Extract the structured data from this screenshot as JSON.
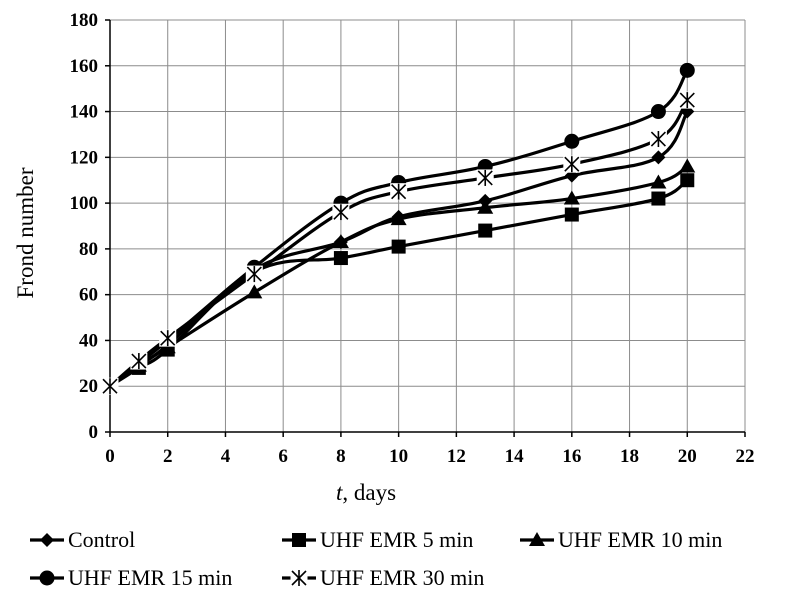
{
  "chart_data": {
    "type": "line",
    "title": "",
    "xlabel_italic": "t",
    "xlabel_rest": ", days",
    "ylabel": "Frond number",
    "xlim": [
      0,
      22
    ],
    "ylim": [
      0,
      180
    ],
    "x_ticks": [
      0,
      2,
      4,
      6,
      8,
      10,
      12,
      14,
      16,
      18,
      20,
      22
    ],
    "y_ticks": [
      0,
      20,
      40,
      60,
      80,
      100,
      120,
      140,
      160,
      180
    ],
    "grid": true,
    "legend_position": "bottom",
    "x": [
      0,
      1,
      2,
      5,
      8,
      10,
      13,
      16,
      19,
      20
    ],
    "series": [
      {
        "name": "Control",
        "marker": "diamond",
        "values": [
          20,
          29,
          38,
          71,
          83,
          94,
          101,
          112,
          120,
          140
        ]
      },
      {
        "name": "UHF EMR 5 min",
        "marker": "square",
        "values": [
          20,
          28,
          36,
          70,
          76,
          81,
          88,
          95,
          102,
          110
        ]
      },
      {
        "name": "UHF EMR 10 min",
        "marker": "triangle",
        "values": [
          20,
          29,
          37,
          61,
          83,
          93,
          98,
          102,
          109,
          116
        ]
      },
      {
        "name": "UHF EMR 15 min",
        "marker": "circle",
        "values": [
          20,
          30,
          40,
          72,
          100,
          109,
          116,
          127,
          140,
          158
        ]
      },
      {
        "name": "UHF EMR 30 min",
        "marker": "asterisk",
        "values": [
          20,
          31,
          41,
          69,
          96,
          105,
          111,
          117,
          128,
          145
        ]
      }
    ]
  }
}
